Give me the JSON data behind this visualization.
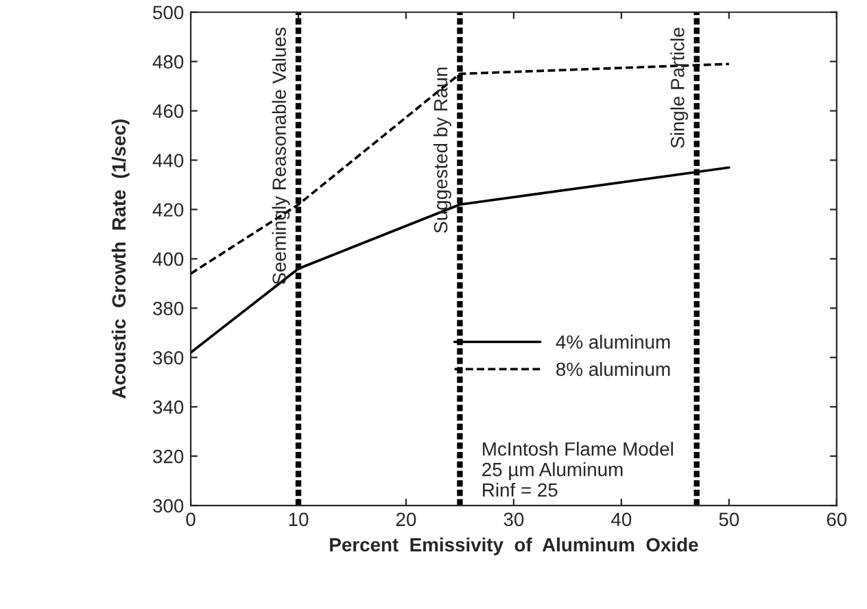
{
  "chart_data": {
    "type": "line",
    "xlabel": "Percent  Emissivity  of  Aluminum  Oxide",
    "ylabel": "Acoustic  Growth  Rate  (1/sec)",
    "x": [
      0,
      10,
      25,
      50
    ],
    "series": [
      {
        "name": "4% aluminum",
        "color": "#000000",
        "line_style": "solid",
        "values": [
          362,
          396,
          422,
          437
        ]
      },
      {
        "name": "8% aluminum",
        "color": "#000000",
        "line_style": "dashed",
        "values": [
          394,
          422,
          475,
          479
        ]
      }
    ],
    "xlim": [
      0,
      60
    ],
    "xticks": [
      0,
      10,
      20,
      30,
      40,
      50,
      60
    ],
    "ylim": [
      300,
      500
    ],
    "yticks": [
      300,
      320,
      340,
      360,
      380,
      400,
      420,
      440,
      460,
      480,
      500
    ],
    "ref_lines": [
      {
        "axis": "x",
        "value": 10,
        "label": "Seemingly Reasonable Values",
        "color": "#000000",
        "line_style": "dashed"
      },
      {
        "axis": "x",
        "value": 25,
        "label": "Suggested by Raun",
        "color": "#000000",
        "line_style": "dashed"
      },
      {
        "axis": "x",
        "value": 47,
        "label": "Single Particle",
        "color": "#000000",
        "line_style": "dashed"
      }
    ],
    "annotations": [
      "McIntosh Flame Model\n25 µm Aluminum\nRinf = 25"
    ],
    "grid": false,
    "legend": "bottom right",
    "marker": "none"
  }
}
